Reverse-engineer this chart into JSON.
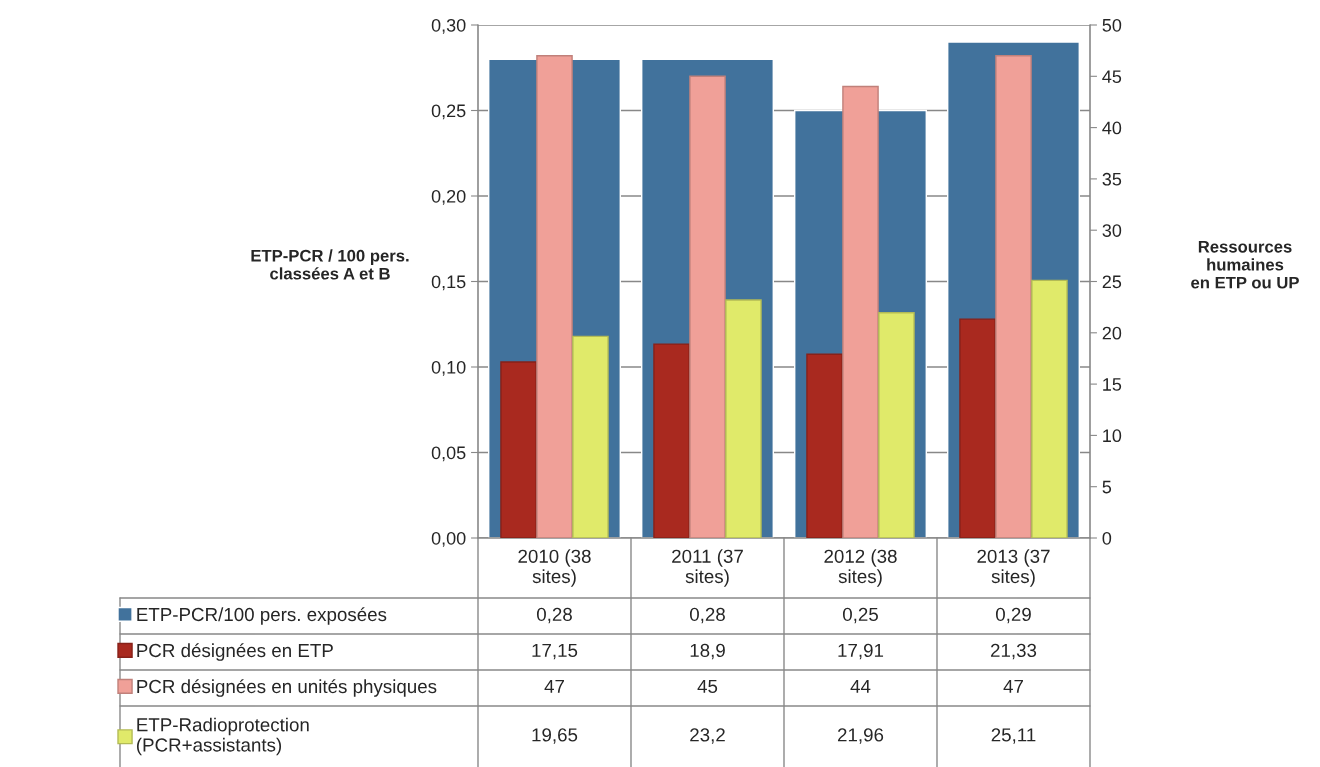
{
  "chart_data": {
    "type": "bar",
    "ylabel": "ETP-PCR / 100 pers.\nclassées A et B",
    "y2label": "Ressources\nhumaines\nen ETP ou UP",
    "categories": [
      "2010 (38\nsites)",
      "2011 (37\nsites)",
      "2012 (38\nsites)",
      "2013 (37\nsites)"
    ],
    "series": [
      {
        "name": "ETP-PCR/100 pers. exposées",
        "color": "#41729c",
        "values": [
          0.28,
          0.28,
          0.25,
          0.29
        ],
        "value_labels": [
          "0,28",
          "0,28",
          "0,25",
          "0,29"
        ]
      },
      {
        "name": "PCR désignées en ETP",
        "color": "#a9291f",
        "axis": "y2",
        "values": [
          17.15,
          18.9,
          17.91,
          21.33
        ],
        "value_labels": [
          "17,15",
          "18,9",
          "17,91",
          "21,33"
        ]
      },
      {
        "name": "PCR désignées en unités physiques",
        "color": "#f0a098",
        "axis": "y2",
        "values": [
          47,
          45,
          44,
          47
        ],
        "value_labels": [
          "47",
          "45",
          "44",
          "47"
        ]
      },
      {
        "name": "ETP-Radioprotection\n(PCR+assistants)",
        "color": "#e0ea6a",
        "axis": "y2",
        "values": [
          19.65,
          23.2,
          21.96,
          25.11
        ],
        "value_labels": [
          "19,65",
          "23,2",
          "21,96",
          "25,11"
        ]
      }
    ],
    "ylim": [
      0,
      0.3
    ],
    "yticks": [
      {
        "value": 0,
        "label": "0,00"
      },
      {
        "value": 0.05,
        "label": "0,05"
      },
      {
        "value": 0.1,
        "label": "0,10"
      },
      {
        "value": 0.15,
        "label": "0,15"
      },
      {
        "value": 0.2,
        "label": "0,20"
      },
      {
        "value": 0.25,
        "label": "0,25"
      },
      {
        "value": 0.3,
        "label": "0,30"
      }
    ],
    "y2lim": [
      0,
      50
    ],
    "y2ticks": [
      0,
      5,
      10,
      15,
      20,
      25,
      30,
      35,
      40,
      45,
      50
    ],
    "grid": "y",
    "legend": "bottom"
  }
}
